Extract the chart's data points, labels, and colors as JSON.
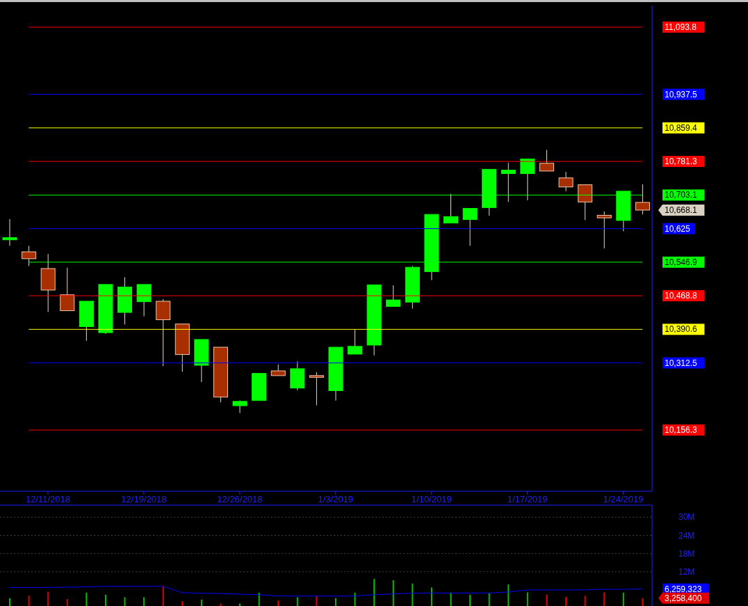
{
  "chart_data": [
    {
      "type": "candlestick",
      "categories": [
        null,
        null,
        "12/11/2018",
        null,
        null,
        null,
        null,
        "12/19/2018",
        null,
        null,
        null,
        null,
        "12/26/2018",
        null,
        null,
        null,
        null,
        "1/3/2019",
        null,
        null,
        null,
        null,
        "1/10/2019",
        null,
        null,
        null,
        null,
        "1/17/2019",
        null,
        null,
        null,
        null,
        "1/24/2019",
        null
      ],
      "ohlc": [
        [
          10599,
          10647,
          10585,
          10604
        ],
        [
          10571,
          10585,
          10538,
          10555
        ],
        [
          10532,
          10566,
          10431,
          10482
        ],
        [
          10471,
          10534,
          10434,
          10434
        ],
        [
          10397,
          10456,
          10364,
          10456
        ],
        [
          10383,
          10495,
          10380,
          10495
        ],
        [
          10430,
          10512,
          10402,
          10489
        ],
        [
          10455,
          10495,
          10421,
          10495
        ],
        [
          10456,
          10461,
          10305,
          10413
        ],
        [
          10403,
          10403,
          10292,
          10332
        ],
        [
          10307,
          10367,
          10268,
          10367
        ],
        [
          10349,
          10349,
          10221,
          10233
        ],
        [
          10213,
          10225,
          10196,
          10223
        ],
        [
          10225,
          10288,
          10225,
          10288
        ],
        [
          10294,
          10309,
          10283,
          10283
        ],
        [
          10254,
          10316,
          10249,
          10299
        ],
        [
          10283,
          10291,
          10214,
          10279
        ],
        [
          10248,
          10349,
          10225,
          10349
        ],
        [
          10333,
          10390,
          10333,
          10351
        ],
        [
          10354,
          10494,
          10330,
          10494
        ],
        [
          10444,
          10493,
          10444,
          10459
        ],
        [
          10454,
          10538,
          10439,
          10535
        ],
        [
          10525,
          10658,
          10505,
          10658
        ],
        [
          10638,
          10706,
          10638,
          10653
        ],
        [
          10646,
          10672,
          10585,
          10672
        ],
        [
          10674,
          10763,
          10655,
          10763
        ],
        [
          10753,
          10778,
          10687,
          10761
        ],
        [
          10753,
          10787,
          10691,
          10787
        ],
        [
          10777,
          10808,
          10759,
          10759
        ],
        [
          10743,
          10757,
          10712,
          10722
        ],
        [
          10727,
          10727,
          10645,
          10687
        ],
        [
          10656,
          10665,
          10579,
          10650
        ],
        [
          10644,
          10712,
          10619,
          10712
        ],
        [
          10686,
          10728,
          10658,
          10668.1
        ]
      ],
      "colors": [
        "#00ff00",
        "#a83000",
        "#a83000",
        "#a83000",
        "#00ff00",
        "#00ff00",
        "#00ff00",
        "#00ff00",
        "#a83000",
        "#a83000",
        "#00ff00",
        "#a83000",
        "#00ff00",
        "#00ff00",
        "#a83000",
        "#00ff00",
        "#a83000",
        "#00ff00",
        "#00ff00",
        "#00ff00",
        "#00ff00",
        "#00ff00",
        "#00ff00",
        "#00ff00",
        "#00ff00",
        "#00ff00",
        "#00ff00",
        "#00ff00",
        "#a83000",
        "#a83000",
        "#a83000",
        "#a83000",
        "#00ff00",
        "#a83000"
      ],
      "ylim": [
        10014,
        11144
      ],
      "yticks": [
        {
          "value": 11093.8,
          "label": "11,093.8"
        },
        {
          "value": 10937.5,
          "label": "10,937.5"
        },
        {
          "value": 10859.4,
          "label": "10,859.4"
        },
        {
          "value": 10781.3,
          "label": "10,781.3"
        },
        {
          "value": 10703.1,
          "label": "10,703.1"
        },
        {
          "value": 10625,
          "label": "10,625"
        },
        {
          "value": 10546.9,
          "label": "10,546.9"
        },
        {
          "value": 10468.8,
          "label": "10,468.8"
        },
        {
          "value": 10390.6,
          "label": "10,390.6"
        },
        {
          "value": 10312.5,
          "label": "10,312.5"
        },
        {
          "value": 10156.3,
          "label": "10,156.3"
        }
      ],
      "ref_lines": [
        {
          "axis": "y",
          "value": 11093.8,
          "color": "#ff0000"
        },
        {
          "axis": "y",
          "value": 10937.5,
          "color": "#0000ff"
        },
        {
          "axis": "y",
          "value": 10859.4,
          "color": "#ffff00"
        },
        {
          "axis": "y",
          "value": 10781.3,
          "color": "#ff0000"
        },
        {
          "axis": "y",
          "value": 10703.1,
          "color": "#00ff00"
        },
        {
          "axis": "y",
          "value": 10625,
          "color": "#0000ff"
        },
        {
          "axis": "y",
          "value": 10546.9,
          "color": "#00ff00"
        },
        {
          "axis": "y",
          "value": 10468.8,
          "color": "#ff0000"
        },
        {
          "axis": "y",
          "value": 10390.6,
          "color": "#ffff00"
        },
        {
          "axis": "y",
          "value": 10312.5,
          "color": "#0000ff"
        },
        {
          "axis": "y",
          "value": 10156.3,
          "color": "#ff0000"
        }
      ],
      "annotations": [
        "10,668.1"
      ]
    },
    {
      "type": "bar",
      "categories": [
        null,
        null,
        null,
        null,
        null,
        null,
        null,
        null,
        null,
        null,
        null,
        null,
        null,
        null,
        null,
        null,
        null,
        null,
        null,
        null,
        null,
        null,
        null,
        null,
        null,
        null,
        null,
        null,
        null,
        null,
        null,
        null,
        null,
        null
      ],
      "tick_labels": "y",
      "grid": "y",
      "ylim": [
        0,
        34
      ],
      "yticks": [
        {
          "value": 12,
          "label": "12M"
        },
        {
          "value": 18,
          "label": "18M"
        },
        {
          "value": 24,
          "label": "24M"
        },
        {
          "value": 30,
          "label": "30M"
        }
      ],
      "series": [
        {
          "type": "bar",
          "values": [
            3.3,
            4.1,
            5.4,
            3.0,
            5.1,
            4.4,
            3.6,
            3.6,
            7.2,
            2.3,
            2.8,
            1.5,
            1.5,
            5.1,
            2.5,
            3.6,
            3.9,
            3.3,
            5.1,
            9.6,
            9.2,
            8.1,
            6.8,
            5.1,
            4.4,
            4.9,
            7.8,
            5.2,
            4.4,
            3.7,
            4.1,
            5.2,
            5.1,
            3.3
          ],
          "colors": [
            "#00c000",
            "#e00000",
            "#e00000",
            "#e00000",
            "#00c000",
            "#00c000",
            "#00c000",
            "#00c000",
            "#e00000",
            "#e00000",
            "#00c000",
            "#e00000",
            "#00c000",
            "#00c000",
            "#e00000",
            "#00c000",
            "#e00000",
            "#00c000",
            "#00c000",
            "#00c000",
            "#00c000",
            "#00c000",
            "#00c000",
            "#00c000",
            "#00c000",
            "#00c000",
            "#00c000",
            "#00c000",
            "#e00000",
            "#e00000",
            "#e00000",
            "#e00000",
            "#00c000",
            "#e00000"
          ]
        },
        {
          "type": "line",
          "color": "#0000ff",
          "values": [
            6.8,
            6.8,
            6.8,
            6.9,
            7.0,
            7.2,
            7.2,
            7.2,
            7.2,
            5.1,
            4.9,
            4.8,
            4.6,
            4.4,
            4.0,
            4.0,
            4.0,
            4.0,
            4.0,
            4.4,
            4.7,
            4.9,
            5.0,
            5.0,
            5.0,
            5.0,
            5.3,
            6.0,
            6.0,
            6.0,
            6.0,
            6.2,
            6.2,
            6.3
          ]
        }
      ],
      "annotations": [
        "6,259,323",
        "3,258,400"
      ]
    }
  ]
}
